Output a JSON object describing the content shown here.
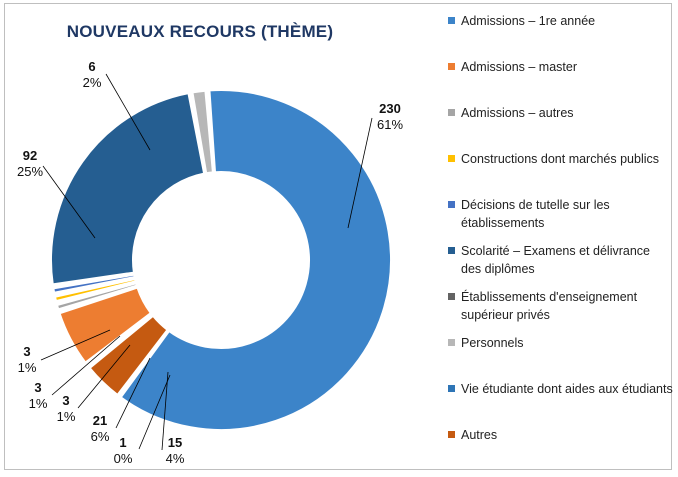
{
  "chart_data": {
    "type": "pie",
    "subtype": "donut",
    "title": "NOUVEAUX RECOURS (THÈME)",
    "legend_position": "right",
    "slices": [
      {
        "label": "Admissions – 1re année",
        "value": 230,
        "percent": "61%",
        "color": "#3c84c9"
      },
      {
        "label": "Admissions – master",
        "value": 21,
        "percent": "6%",
        "color": "#ed7d31"
      },
      {
        "label": "Admissions – autres",
        "value": 3,
        "percent": "1%",
        "color": "#a5a5a5"
      },
      {
        "label": "Constructions dont marchés publics",
        "value": 3,
        "percent": "1%",
        "color": "#ffc000"
      },
      {
        "label": "Décisions de tutelle sur les établissements",
        "value": 3,
        "percent": "1%",
        "color": "#4472c4"
      },
      {
        "label": "Scolarité – Examens et délivrance des diplômes",
        "value": 92,
        "percent": "25%",
        "color": "#255e91"
      },
      {
        "label": "Établissements d'enseignement supérieur privés",
        "value": 1,
        "percent": "0%",
        "color": "#636363"
      },
      {
        "label": "Personnels",
        "value": 6,
        "percent": "2%",
        "color": "#b7b7b7"
      },
      {
        "label": "Vie étudiante dont aides aux étudiants",
        "value": 0,
        "percent": "",
        "color": "#2e75b6"
      },
      {
        "label": "Autres",
        "value": 15,
        "percent": "4%",
        "color": "#c55a11"
      }
    ]
  }
}
